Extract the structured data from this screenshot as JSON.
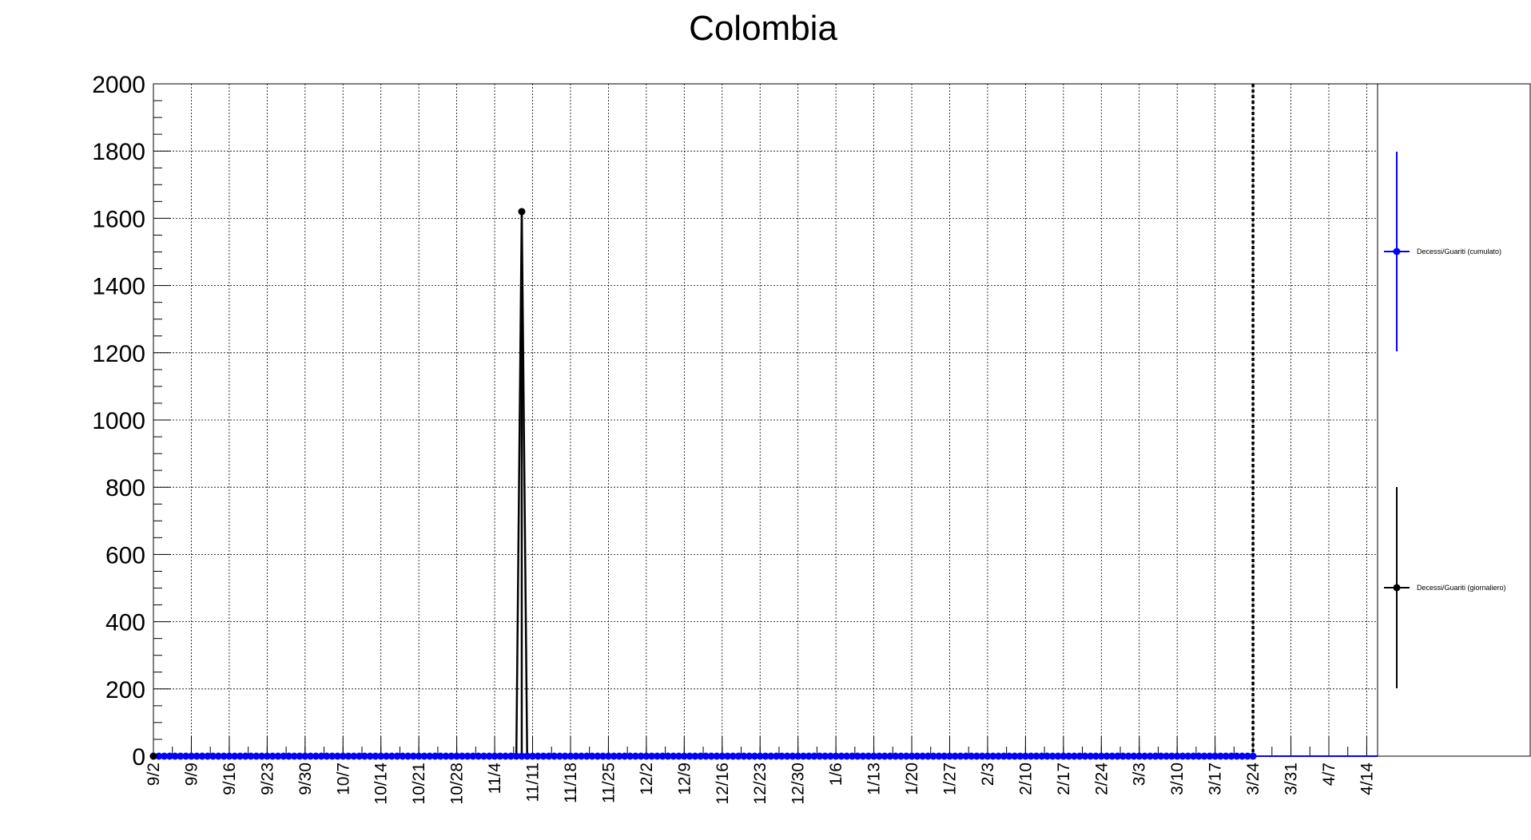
{
  "chart_data": {
    "type": "line",
    "title": "Colombia",
    "xlabel": "",
    "ylabel": "",
    "ylim": [
      0,
      2000
    ],
    "yticks": [
      "0",
      "200",
      "400",
      "600",
      "800",
      "1000",
      "1200",
      "1400",
      "1600",
      "1800",
      "2000"
    ],
    "x_start": "9/2",
    "x_end_of_data": "3/24",
    "x_max": "4/16",
    "xticks": [
      "9/2",
      "9/9",
      "9/16",
      "9/23",
      "9/30",
      "10/7",
      "10/14",
      "10/21",
      "10/28",
      "11/4",
      "11/11",
      "11/18",
      "11/25",
      "12/2",
      "12/9",
      "12/16",
      "12/23",
      "12/30",
      "1/6",
      "1/13",
      "1/20",
      "1/27",
      "2/3",
      "2/10",
      "2/17",
      "2/24",
      "3/3",
      "3/10",
      "3/17",
      "3/24",
      "3/31",
      "4/7",
      "4/14"
    ],
    "grid": true,
    "legend_position": "right",
    "vertical_marker": "3/24",
    "series": [
      {
        "name": "Decessi/Guariti (cumulato)",
        "color": "#0000ff",
        "points": [
          {
            "x": "9/2",
            "y": 0
          },
          {
            "x": "3/24",
            "y": 0
          }
        ],
        "constant_value": 0,
        "extension_to": "4/16"
      },
      {
        "name": "Decessi/Guariti (giornaliero)",
        "color": "#000000",
        "points": [
          {
            "x": "9/2",
            "y": 0
          },
          {
            "x": "11/8",
            "y": 0
          },
          {
            "x": "11/9",
            "y": 1620
          },
          {
            "x": "11/10",
            "y": 0
          },
          {
            "x": "3/24",
            "y": 0
          }
        ],
        "error_bars": [
          {
            "x": "11/9",
            "y": 1620,
            "err_low": 1620,
            "err_high": 0
          }
        ]
      }
    ]
  }
}
